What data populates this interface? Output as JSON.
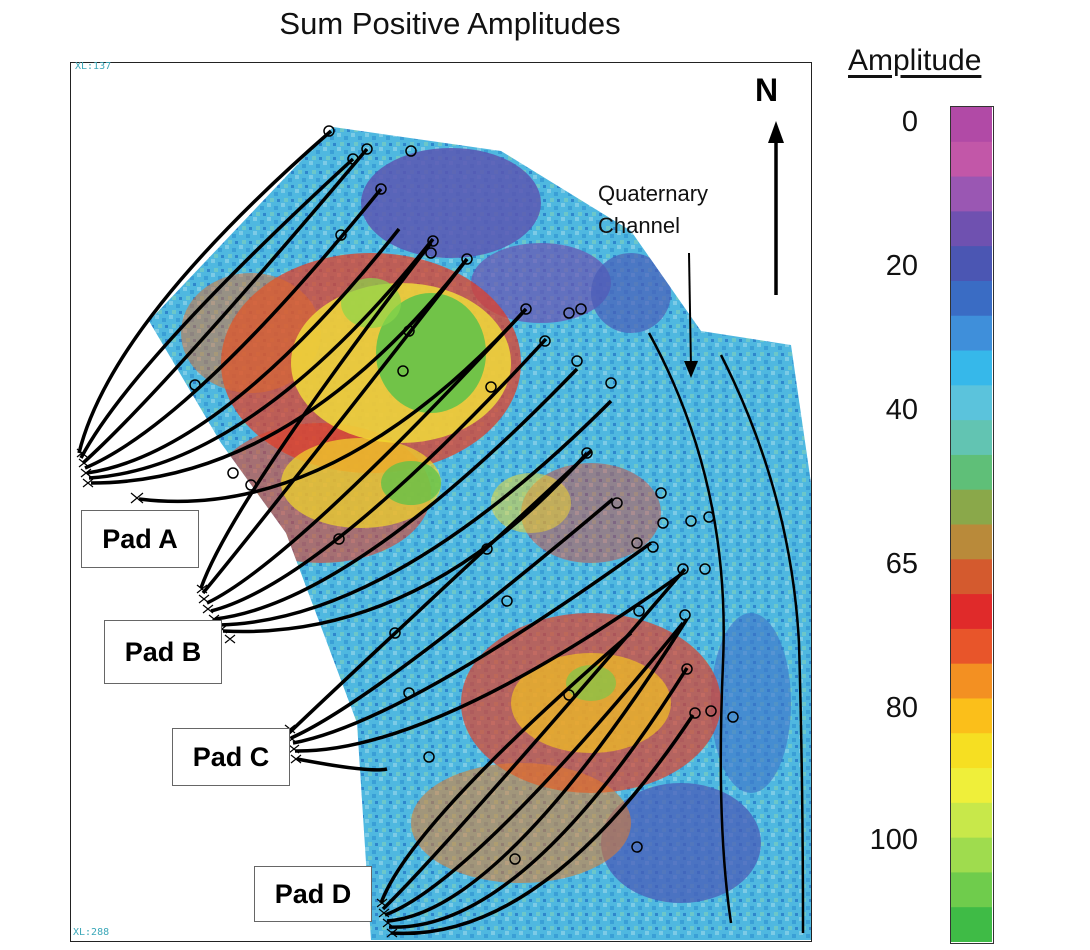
{
  "title": "Sum Positive Amplitudes",
  "north_label": "N",
  "annotation": {
    "line1": "Quaternary",
    "line2": "Channel"
  },
  "corner_labels": {
    "top": "XL:137",
    "bottom": "XL:288"
  },
  "pads": [
    {
      "label": "Pad A"
    },
    {
      "label": "Pad B"
    },
    {
      "label": "Pad C"
    },
    {
      "label": "Pad D"
    }
  ],
  "legend": {
    "title": "Amplitude",
    "ticks": [
      {
        "value": 0,
        "label": "0"
      },
      {
        "value": 20,
        "label": "20"
      },
      {
        "value": 40,
        "label": "40"
      },
      {
        "value": 65,
        "label": "65"
      },
      {
        "value": 80,
        "label": "80"
      },
      {
        "value": 100,
        "label": "100"
      }
    ],
    "colors": [
      "#b14aa6",
      "#c257a8",
      "#9a57b3",
      "#6f51b0",
      "#4b56b3",
      "#3a6cc4",
      "#3f8fda",
      "#36b8ea",
      "#5bc3dc",
      "#62c4b2",
      "#5fbf78",
      "#8aa84a",
      "#b98a3a",
      "#d45a2e",
      "#e02a2a",
      "#e8552a",
      "#f39022",
      "#fbbf1a",
      "#f6df22",
      "#efef3a",
      "#c8e84a",
      "#9fdc4e",
      "#6fcc4c",
      "#3fbb46"
    ]
  }
}
